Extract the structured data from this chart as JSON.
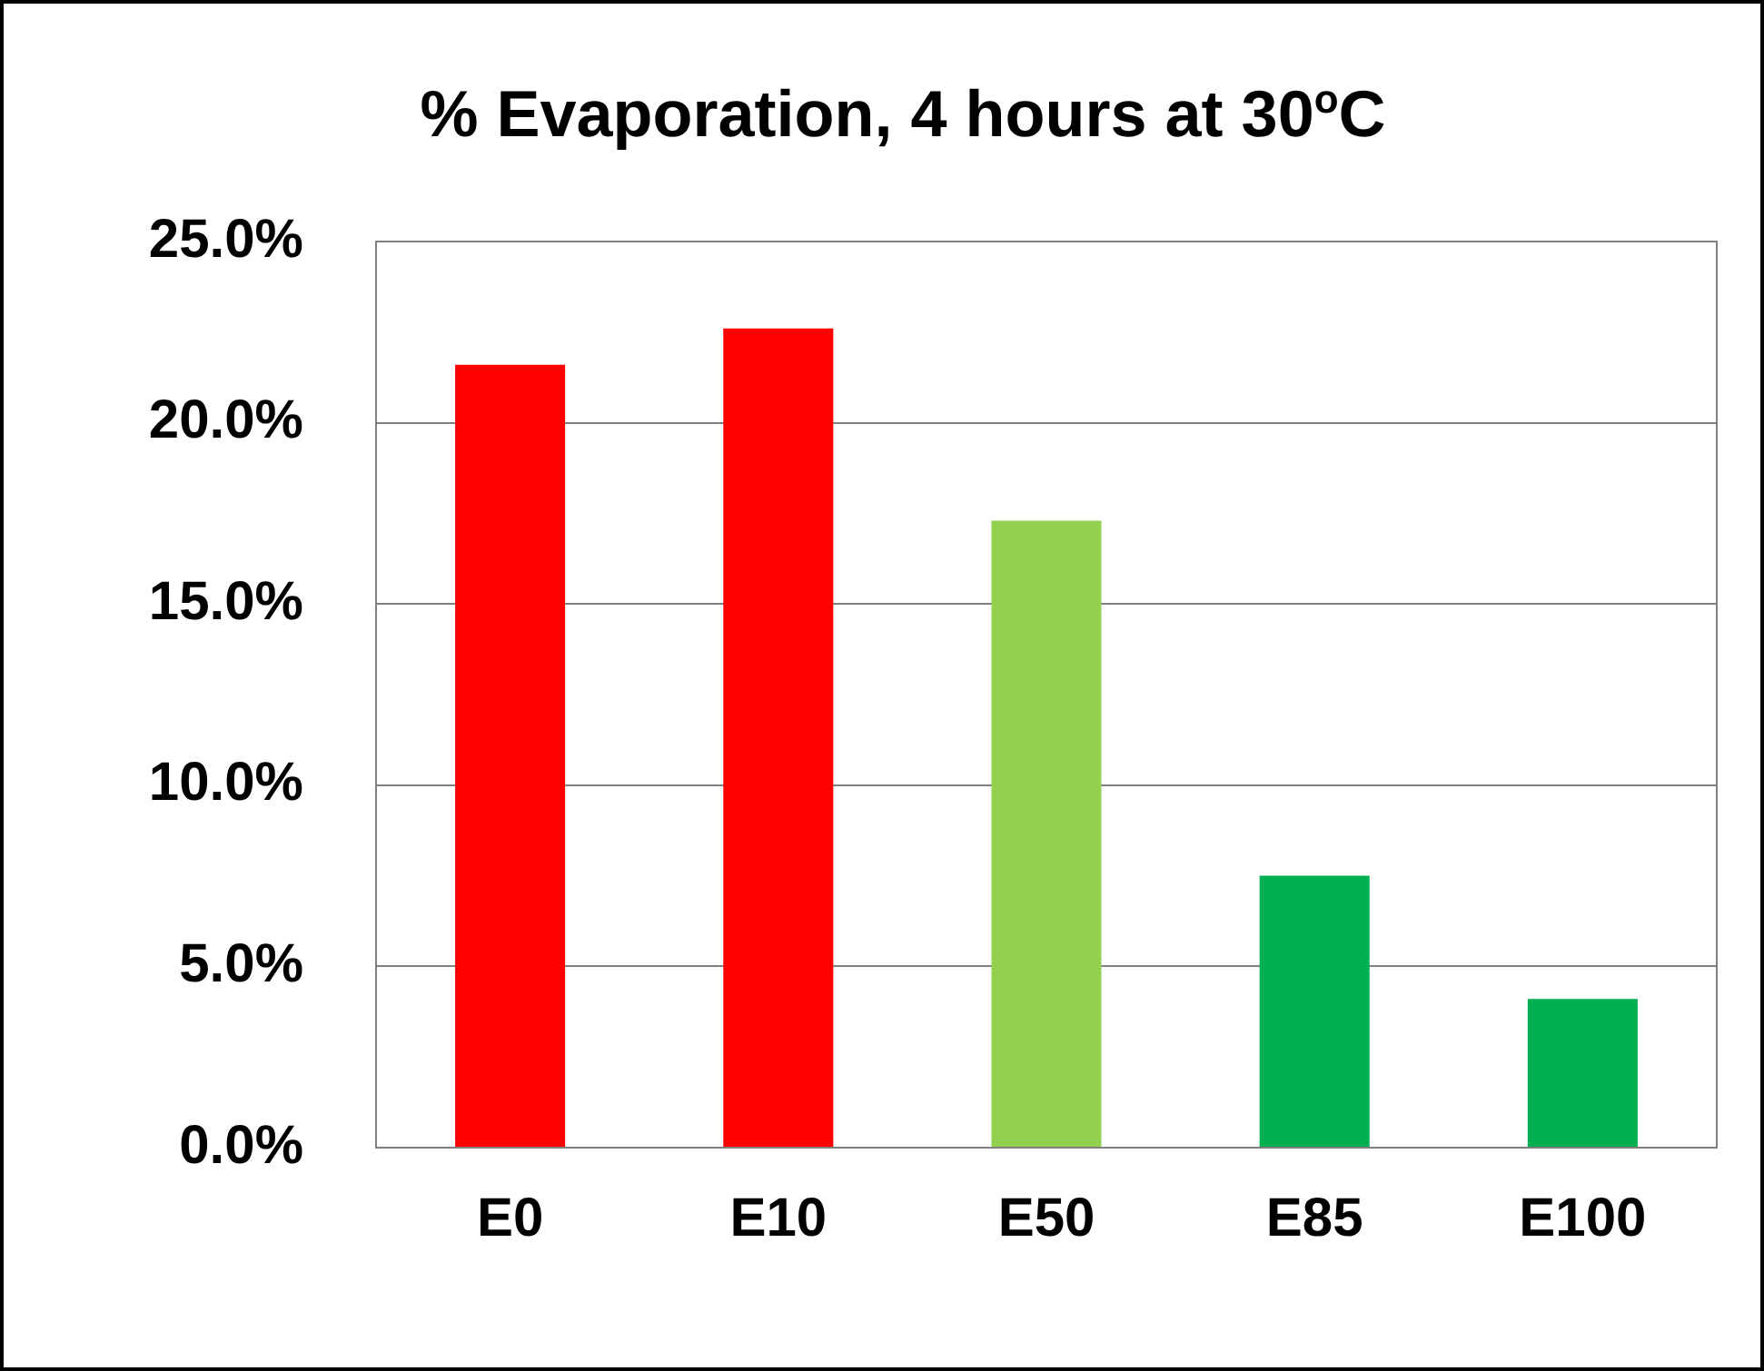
{
  "chart_data": {
    "type": "bar",
    "title": "% Evaporation, 4 hours at 30$^{o}$C",
    "categories": [
      "E0",
      "E10",
      "E50",
      "E85",
      "E100"
    ],
    "values": [
      21.6,
      22.6,
      17.3,
      7.5,
      4.1
    ],
    "colors": [
      "#ff0000",
      "#ff0000",
      "#92d050",
      "#00b050",
      "#00b050"
    ],
    "ylim": [
      0,
      25
    ],
    "yticks": [
      {
        "value": 0,
        "label": "0.0%"
      },
      {
        "value": 5,
        "label": "5.0%"
      },
      {
        "value": 10,
        "label": "10.0%"
      },
      {
        "value": 15,
        "label": "15.0%"
      },
      {
        "value": 20,
        "label": "20.0%"
      },
      {
        "value": 25,
        "label": "25.0%"
      }
    ],
    "grid": "y",
    "legend": false
  }
}
